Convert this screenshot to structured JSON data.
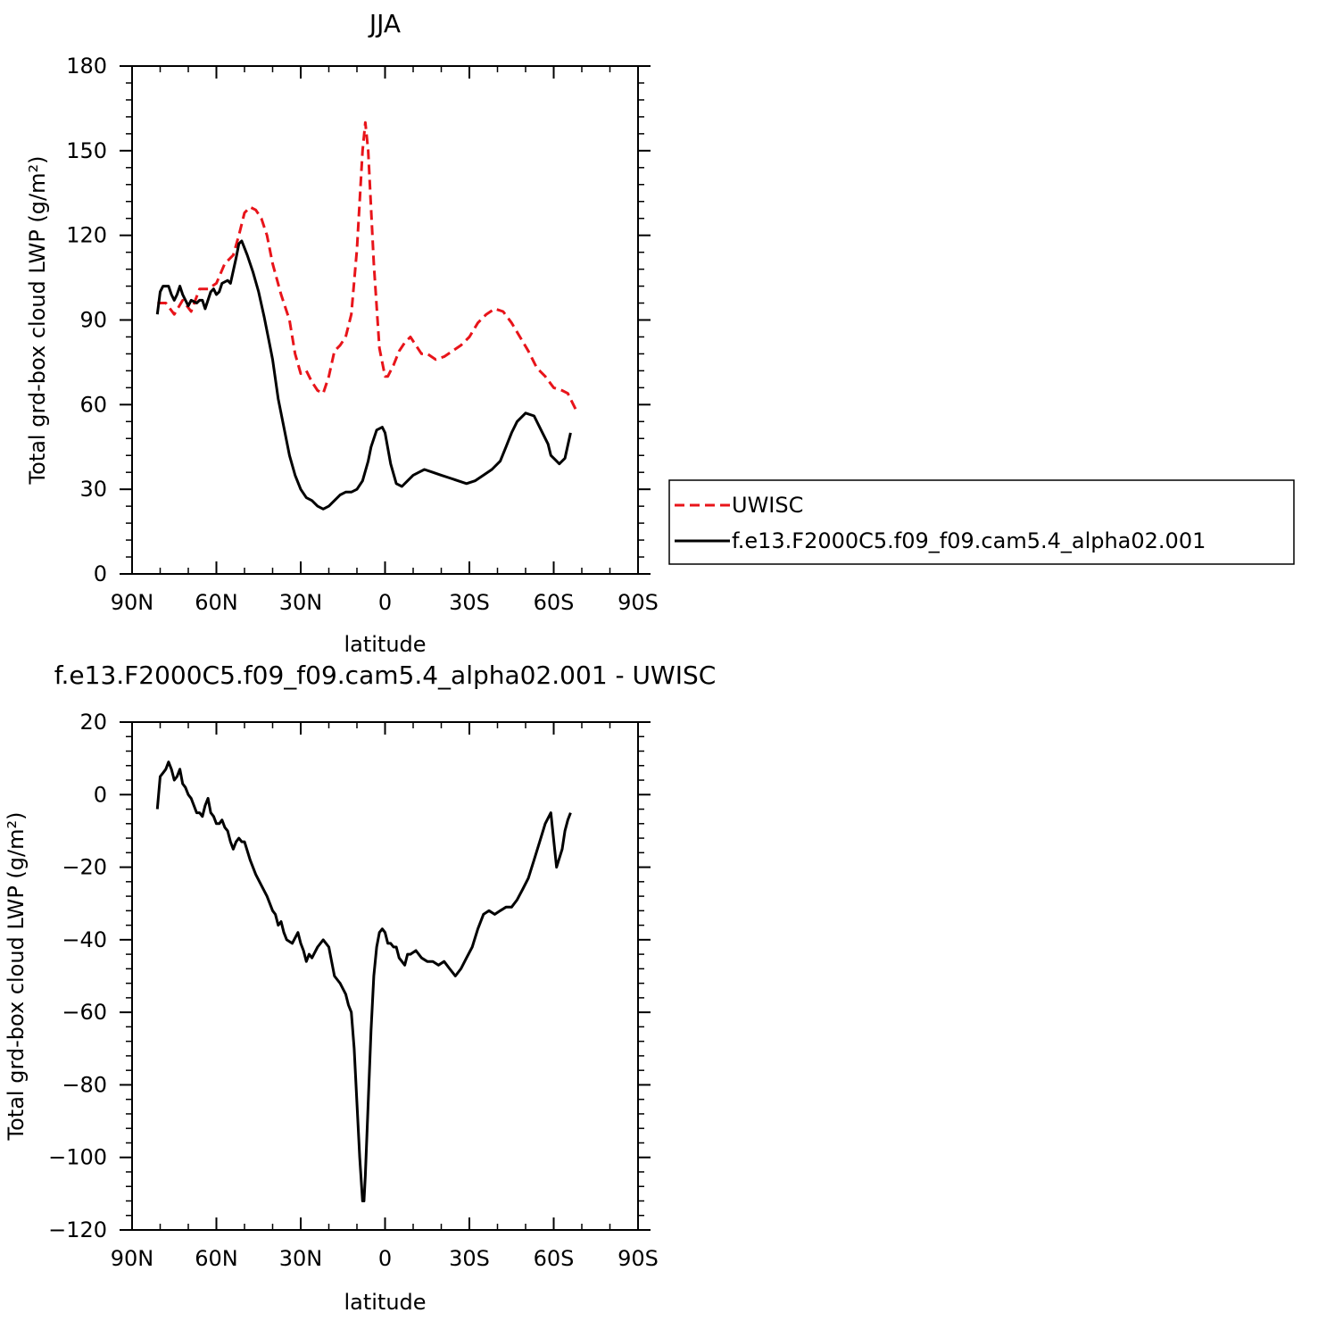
{
  "chart_data": [
    {
      "type": "line",
      "title": "JJA",
      "xlabel": "latitude",
      "ylabel": "Total grd-box cloud LWP (g/m²)",
      "xlim": [
        90,
        -90
      ],
      "ylim": [
        0,
        180
      ],
      "xticks": [
        {
          "value": 90,
          "label": "90N"
        },
        {
          "value": 60,
          "label": "60N"
        },
        {
          "value": 30,
          "label": "30N"
        },
        {
          "value": 0,
          "label": "0"
        },
        {
          "value": -30,
          "label": "30S"
        },
        {
          "value": -60,
          "label": "60S"
        },
        {
          "value": -90,
          "label": "90S"
        }
      ],
      "yticks": [
        0,
        30,
        60,
        90,
        120,
        150,
        180
      ],
      "legend": "right",
      "series": [
        {
          "name": "UWISC",
          "color": "#e8141a",
          "dash": "dashed",
          "x": [
            81,
            78,
            75,
            72,
            69,
            66,
            63,
            60,
            57,
            54,
            52,
            50,
            48,
            46,
            44,
            42,
            40,
            37,
            34,
            32,
            30,
            28,
            26,
            24,
            22,
            20,
            18,
            16,
            14,
            12,
            10,
            8,
            7,
            6,
            4,
            2,
            0,
            -1,
            -3,
            -5,
            -7,
            -9,
            -11,
            -13,
            -15,
            -18,
            -21,
            -24,
            -27,
            -30,
            -33,
            -36,
            -39,
            -42,
            -45,
            -48,
            -51,
            -54,
            -57,
            -60,
            -63,
            -65,
            -67,
            -68
          ],
          "y": [
            96,
            96,
            92,
            97,
            93,
            101,
            101,
            103,
            110,
            113,
            120,
            128,
            130,
            129,
            126,
            120,
            110,
            99,
            90,
            78,
            71,
            72,
            68,
            65,
            64,
            70,
            79,
            81,
            84,
            92,
            115,
            150,
            160,
            150,
            110,
            80,
            70,
            70,
            74,
            79,
            82,
            84,
            81,
            78,
            78,
            76,
            77,
            79,
            81,
            84,
            89,
            92,
            94,
            93,
            89,
            84,
            79,
            73,
            70,
            66,
            65,
            64,
            60,
            58
          ]
        },
        {
          "name": "f.e13.F2000C5.f09_f09.cam5.4_alpha02.001",
          "color": "#000000",
          "dash": "solid",
          "x": [
            81,
            80,
            79,
            77,
            76,
            75,
            74,
            73,
            72,
            70,
            69,
            67,
            66,
            65,
            64,
            62,
            61,
            60,
            59,
            58,
            56,
            55,
            53,
            52,
            51,
            49,
            47,
            45,
            43,
            41,
            40,
            38,
            36,
            34,
            32,
            30,
            28,
            26,
            24,
            22,
            20,
            18,
            16,
            14,
            12,
            10,
            8,
            6,
            5,
            3,
            1,
            0,
            -2,
            -4,
            -6,
            -8,
            -10,
            -12,
            -14,
            -17,
            -20,
            -23,
            -26,
            -29,
            -32,
            -35,
            -38,
            -41,
            -43,
            -45,
            -47,
            -50,
            -53,
            -56,
            -58,
            -59,
            -61,
            -62,
            -64,
            -66
          ],
          "y": [
            92,
            100,
            102,
            102,
            99,
            97,
            99,
            102,
            99,
            95,
            97,
            96,
            97,
            97,
            94,
            100,
            101,
            99,
            100,
            103,
            104,
            103,
            112,
            117,
            118,
            113,
            107,
            100,
            91,
            81,
            76,
            62,
            52,
            42,
            35,
            30,
            27,
            26,
            24,
            23,
            24,
            26,
            28,
            29,
            29,
            30,
            33,
            40,
            45,
            51,
            52,
            50,
            39,
            32,
            31,
            33,
            35,
            36,
            37,
            36,
            35,
            34,
            33,
            32,
            33,
            35,
            37,
            40,
            45,
            50,
            54,
            57,
            56,
            50,
            46,
            42,
            40,
            39,
            41,
            50
          ]
        }
      ]
    },
    {
      "type": "line",
      "title": "f.e13.F2000C5.f09_f09.cam5.4_alpha02.001 - UWISC",
      "xlabel": "latitude",
      "ylabel": "Total grd-box cloud LWP (g/m²)",
      "xlim": [
        90,
        -90
      ],
      "ylim": [
        -120,
        20
      ],
      "xticks": [
        {
          "value": 90,
          "label": "90N"
        },
        {
          "value": 60,
          "label": "60N"
        },
        {
          "value": 30,
          "label": "30N"
        },
        {
          "value": 0,
          "label": "0"
        },
        {
          "value": -30,
          "label": "30S"
        },
        {
          "value": -60,
          "label": "60S"
        },
        {
          "value": -90,
          "label": "90S"
        }
      ],
      "yticks": [
        -120,
        -100,
        -80,
        -60,
        -40,
        -20,
        0,
        20
      ],
      "series": [
        {
          "color": "#000000",
          "dash": "solid",
          "x": [
            81,
            80,
            79,
            78,
            77,
            76,
            75,
            74,
            73,
            72,
            71,
            70,
            69,
            68,
            67,
            66,
            65,
            64,
            63,
            62,
            61,
            60,
            59,
            58,
            57,
            56,
            55,
            54,
            53,
            52,
            51,
            50,
            48,
            46,
            44,
            42,
            40,
            39,
            38,
            37,
            36,
            35,
            33,
            31,
            30,
            29,
            28,
            27,
            26,
            24,
            22,
            20,
            18,
            16,
            14,
            13,
            12,
            11,
            10,
            9,
            8.5,
            8,
            7.5,
            7,
            6,
            5,
            4,
            3,
            2,
            1,
            0,
            -1,
            -2,
            -3,
            -4,
            -5,
            -6,
            -7,
            -8,
            -9,
            -11,
            -13,
            -15,
            -17,
            -19,
            -21,
            -23,
            -25,
            -27,
            -29,
            -31,
            -33,
            -35,
            -37,
            -39,
            -41,
            -43,
            -45,
            -47,
            -49,
            -51,
            -53,
            -55,
            -57,
            -59,
            -61,
            -63,
            -64,
            -65,
            -66
          ],
          "y": [
            -4,
            5,
            6,
            7,
            9,
            7,
            4,
            5,
            7,
            3,
            2,
            0,
            -1,
            -3,
            -5,
            -5,
            -6,
            -3,
            -1,
            -5,
            -6,
            -8,
            -8,
            -7,
            -9,
            -10,
            -13,
            -15,
            -13,
            -12,
            -13,
            -13,
            -18,
            -22,
            -25,
            -28,
            -32,
            -33,
            -36,
            -35,
            -38,
            -40,
            -41,
            -38,
            -41,
            -43,
            -46,
            -44,
            -45,
            -42,
            -40,
            -42,
            -50,
            -52,
            -55,
            -58,
            -60,
            -70,
            -85,
            -100,
            -106,
            -112,
            -112,
            -105,
            -85,
            -65,
            -50,
            -42,
            -38,
            -37,
            -38,
            -41,
            -41,
            -42,
            -42,
            -45,
            -46,
            -47,
            -44,
            -44,
            -43,
            -45,
            -46,
            -46,
            -47,
            -46,
            -48,
            -50,
            -48,
            -45,
            -42,
            -37,
            -33,
            -32,
            -33,
            -32,
            -31,
            -31,
            -29,
            -26,
            -23,
            -18,
            -13,
            -8,
            -5,
            -20,
            -15,
            -10,
            -7,
            -5
          ]
        }
      ]
    }
  ]
}
